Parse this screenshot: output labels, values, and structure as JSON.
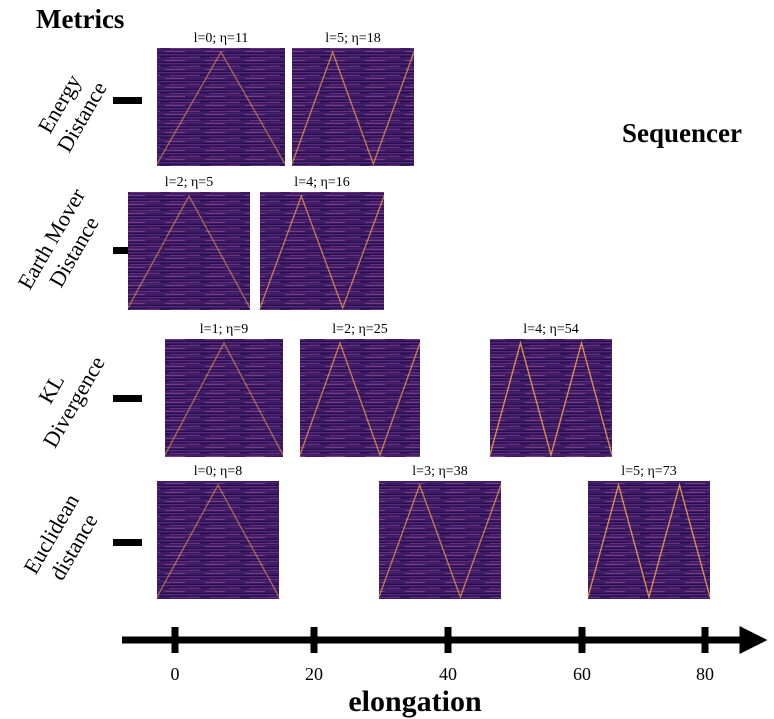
{
  "title": "Metrics",
  "side_label": "Sequencer",
  "axis": {
    "label": "elongation",
    "ticks": [
      "0",
      "20",
      "40",
      "60",
      "80"
    ]
  },
  "rows": [
    {
      "metric": [
        "Energy",
        "Distance"
      ],
      "panels": [
        "l=0; η=11",
        "l=5; η=18"
      ]
    },
    {
      "metric": [
        "Earth Mover",
        "Distance"
      ],
      "panels": [
        "l=2; η=5",
        "l=4; η=16"
      ]
    },
    {
      "metric": [
        "KL",
        "Divergence"
      ],
      "panels": [
        "l=1; η=9",
        "l=2; η=25",
        "l=4; η=54"
      ]
    },
    {
      "metric": [
        "Euclidean",
        "distance"
      ],
      "panels": [
        "l=0; η=8",
        "l=3; η=38",
        "l=5; η=73"
      ]
    }
  ]
}
